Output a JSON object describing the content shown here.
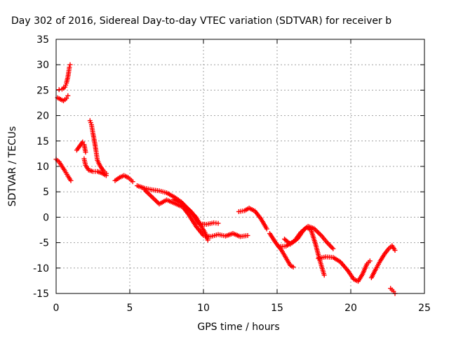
{
  "chart_data": {
    "type": "scatter",
    "title": "Day 302 of 2016, Sidereal Day-to-day VTEC variation (SDTVAR) for receiver b",
    "xlabel": "GPS time / hours",
    "ylabel": "SDTVAR / TECUs",
    "xlim": [
      0,
      25
    ],
    "ylim": [
      -15,
      35
    ],
    "xticks": [
      0,
      5,
      10,
      15,
      20,
      25
    ],
    "yticks": [
      -15,
      -10,
      -5,
      0,
      5,
      10,
      15,
      20,
      25,
      30,
      35
    ],
    "xtick_labels": [
      "0",
      "5",
      "10",
      "15",
      "20",
      "25"
    ],
    "ytick_labels": [
      "-15",
      "-10",
      "-5",
      "0",
      "5",
      "10",
      "15",
      "20",
      "25",
      "30",
      "35"
    ],
    "grid": true,
    "marker": "plus",
    "color": "#ff0000",
    "segments": [
      [
        [
          0.1,
          23.5
        ],
        [
          0.3,
          23.2
        ],
        [
          0.5,
          22.9
        ],
        [
          0.7,
          23.4
        ],
        [
          0.8,
          23.9
        ]
      ],
      [
        [
          0.2,
          25.1
        ],
        [
          0.4,
          25.2
        ],
        [
          0.6,
          25.6
        ],
        [
          0.7,
          26.4
        ],
        [
          0.8,
          27.6
        ],
        [
          0.85,
          28.5
        ],
        [
          0.9,
          29.5
        ],
        [
          0.95,
          30.0
        ]
      ],
      [
        [
          0.0,
          11.4
        ],
        [
          0.2,
          10.9
        ],
        [
          0.4,
          10.0
        ],
        [
          0.6,
          9.1
        ],
        [
          0.8,
          8.1
        ],
        [
          1.0,
          7.2
        ]
      ],
      [
        [
          1.4,
          13.2
        ],
        [
          1.6,
          14.0
        ],
        [
          1.8,
          14.8
        ],
        [
          1.9,
          14.3
        ],
        [
          2.0,
          12.8
        ]
      ],
      [
        [
          1.9,
          11.5
        ],
        [
          2.0,
          10.2
        ],
        [
          2.2,
          9.3
        ],
        [
          2.5,
          9.0
        ],
        [
          2.8,
          9.0
        ],
        [
          3.1,
          8.7
        ],
        [
          3.4,
          8.2
        ]
      ],
      [
        [
          2.3,
          19.0
        ],
        [
          2.4,
          18.2
        ],
        [
          2.5,
          16.5
        ],
        [
          2.6,
          15.0
        ],
        [
          2.7,
          13.2
        ],
        [
          2.8,
          11.2
        ],
        [
          3.0,
          10.0
        ],
        [
          3.2,
          9.2
        ],
        [
          3.4,
          8.6
        ]
      ],
      [
        [
          4.0,
          7.2
        ],
        [
          4.3,
          7.8
        ],
        [
          4.6,
          8.2
        ],
        [
          4.9,
          7.8
        ],
        [
          5.2,
          7.0
        ]
      ],
      [
        [
          5.5,
          6.2
        ],
        [
          6.0,
          5.7
        ],
        [
          6.5,
          5.4
        ],
        [
          7.0,
          5.2
        ],
        [
          7.5,
          4.8
        ],
        [
          8.0,
          4.0
        ],
        [
          8.5,
          3.0
        ],
        [
          9.0,
          1.5
        ],
        [
          9.5,
          0.0
        ],
        [
          9.8,
          -1.5
        ],
        [
          10.1,
          -3.0
        ],
        [
          10.3,
          -4.5
        ]
      ],
      [
        [
          6.0,
          5.4
        ],
        [
          6.5,
          4.0
        ],
        [
          7.0,
          2.6
        ],
        [
          7.5,
          3.4
        ],
        [
          8.0,
          2.8
        ],
        [
          8.6,
          2.0
        ],
        [
          9.0,
          0.5
        ],
        [
          9.5,
          -1.8
        ],
        [
          10.0,
          -3.6
        ],
        [
          10.5,
          -3.8
        ],
        [
          11.0,
          -3.4
        ],
        [
          11.5,
          -3.7
        ],
        [
          12.0,
          -3.2
        ],
        [
          12.5,
          -3.8
        ],
        [
          13.0,
          -3.6
        ]
      ],
      [
        [
          8.0,
          3.5
        ],
        [
          8.5,
          2.8
        ],
        [
          9.2,
          1.0
        ],
        [
          9.7,
          -1.3
        ],
        [
          10.2,
          -1.4
        ],
        [
          10.7,
          -1.1
        ],
        [
          11.0,
          -1.2
        ]
      ],
      [
        [
          12.4,
          1.1
        ],
        [
          12.8,
          1.3
        ],
        [
          13.1,
          1.8
        ],
        [
          13.5,
          1.2
        ],
        [
          13.9,
          -0.3
        ],
        [
          14.3,
          -2.3
        ]
      ],
      [
        [
          14.5,
          -3.2
        ],
        [
          14.9,
          -5.0
        ],
        [
          15.3,
          -6.5
        ],
        [
          15.6,
          -8.0
        ],
        [
          15.9,
          -9.5
        ],
        [
          16.1,
          -9.8
        ]
      ],
      [
        [
          15.5,
          -4.3
        ],
        [
          15.9,
          -5.3
        ],
        [
          16.4,
          -4.2
        ],
        [
          16.8,
          -2.5
        ],
        [
          17.1,
          -1.8
        ],
        [
          17.5,
          -2.2
        ],
        [
          18.0,
          -3.6
        ],
        [
          18.4,
          -5.0
        ],
        [
          18.8,
          -6.2
        ]
      ],
      [
        [
          15.1,
          -5.8
        ],
        [
          15.6,
          -5.7
        ],
        [
          16.2,
          -4.6
        ],
        [
          16.6,
          -3.0
        ],
        [
          17.0,
          -2.0
        ],
        [
          17.3,
          -2.5
        ],
        [
          17.6,
          -5.2
        ],
        [
          17.9,
          -8.5
        ],
        [
          18.2,
          -11.4
        ]
      ],
      [
        [
          17.8,
          -8.1
        ],
        [
          18.3,
          -7.8
        ],
        [
          18.8,
          -7.9
        ],
        [
          19.3,
          -8.8
        ],
        [
          19.8,
          -10.5
        ],
        [
          20.2,
          -12.2
        ],
        [
          20.5,
          -12.6
        ],
        [
          20.8,
          -11.2
        ],
        [
          21.1,
          -9.2
        ],
        [
          21.3,
          -8.6
        ]
      ],
      [
        [
          21.4,
          -11.9
        ],
        [
          21.7,
          -10.2
        ],
        [
          22.0,
          -8.6
        ],
        [
          22.3,
          -7.2
        ],
        [
          22.6,
          -6.1
        ],
        [
          22.8,
          -5.6
        ],
        [
          23.0,
          -6.5
        ]
      ],
      [
        [
          22.7,
          -14.0
        ],
        [
          22.9,
          -14.6
        ],
        [
          23.0,
          -15.0
        ]
      ]
    ]
  }
}
